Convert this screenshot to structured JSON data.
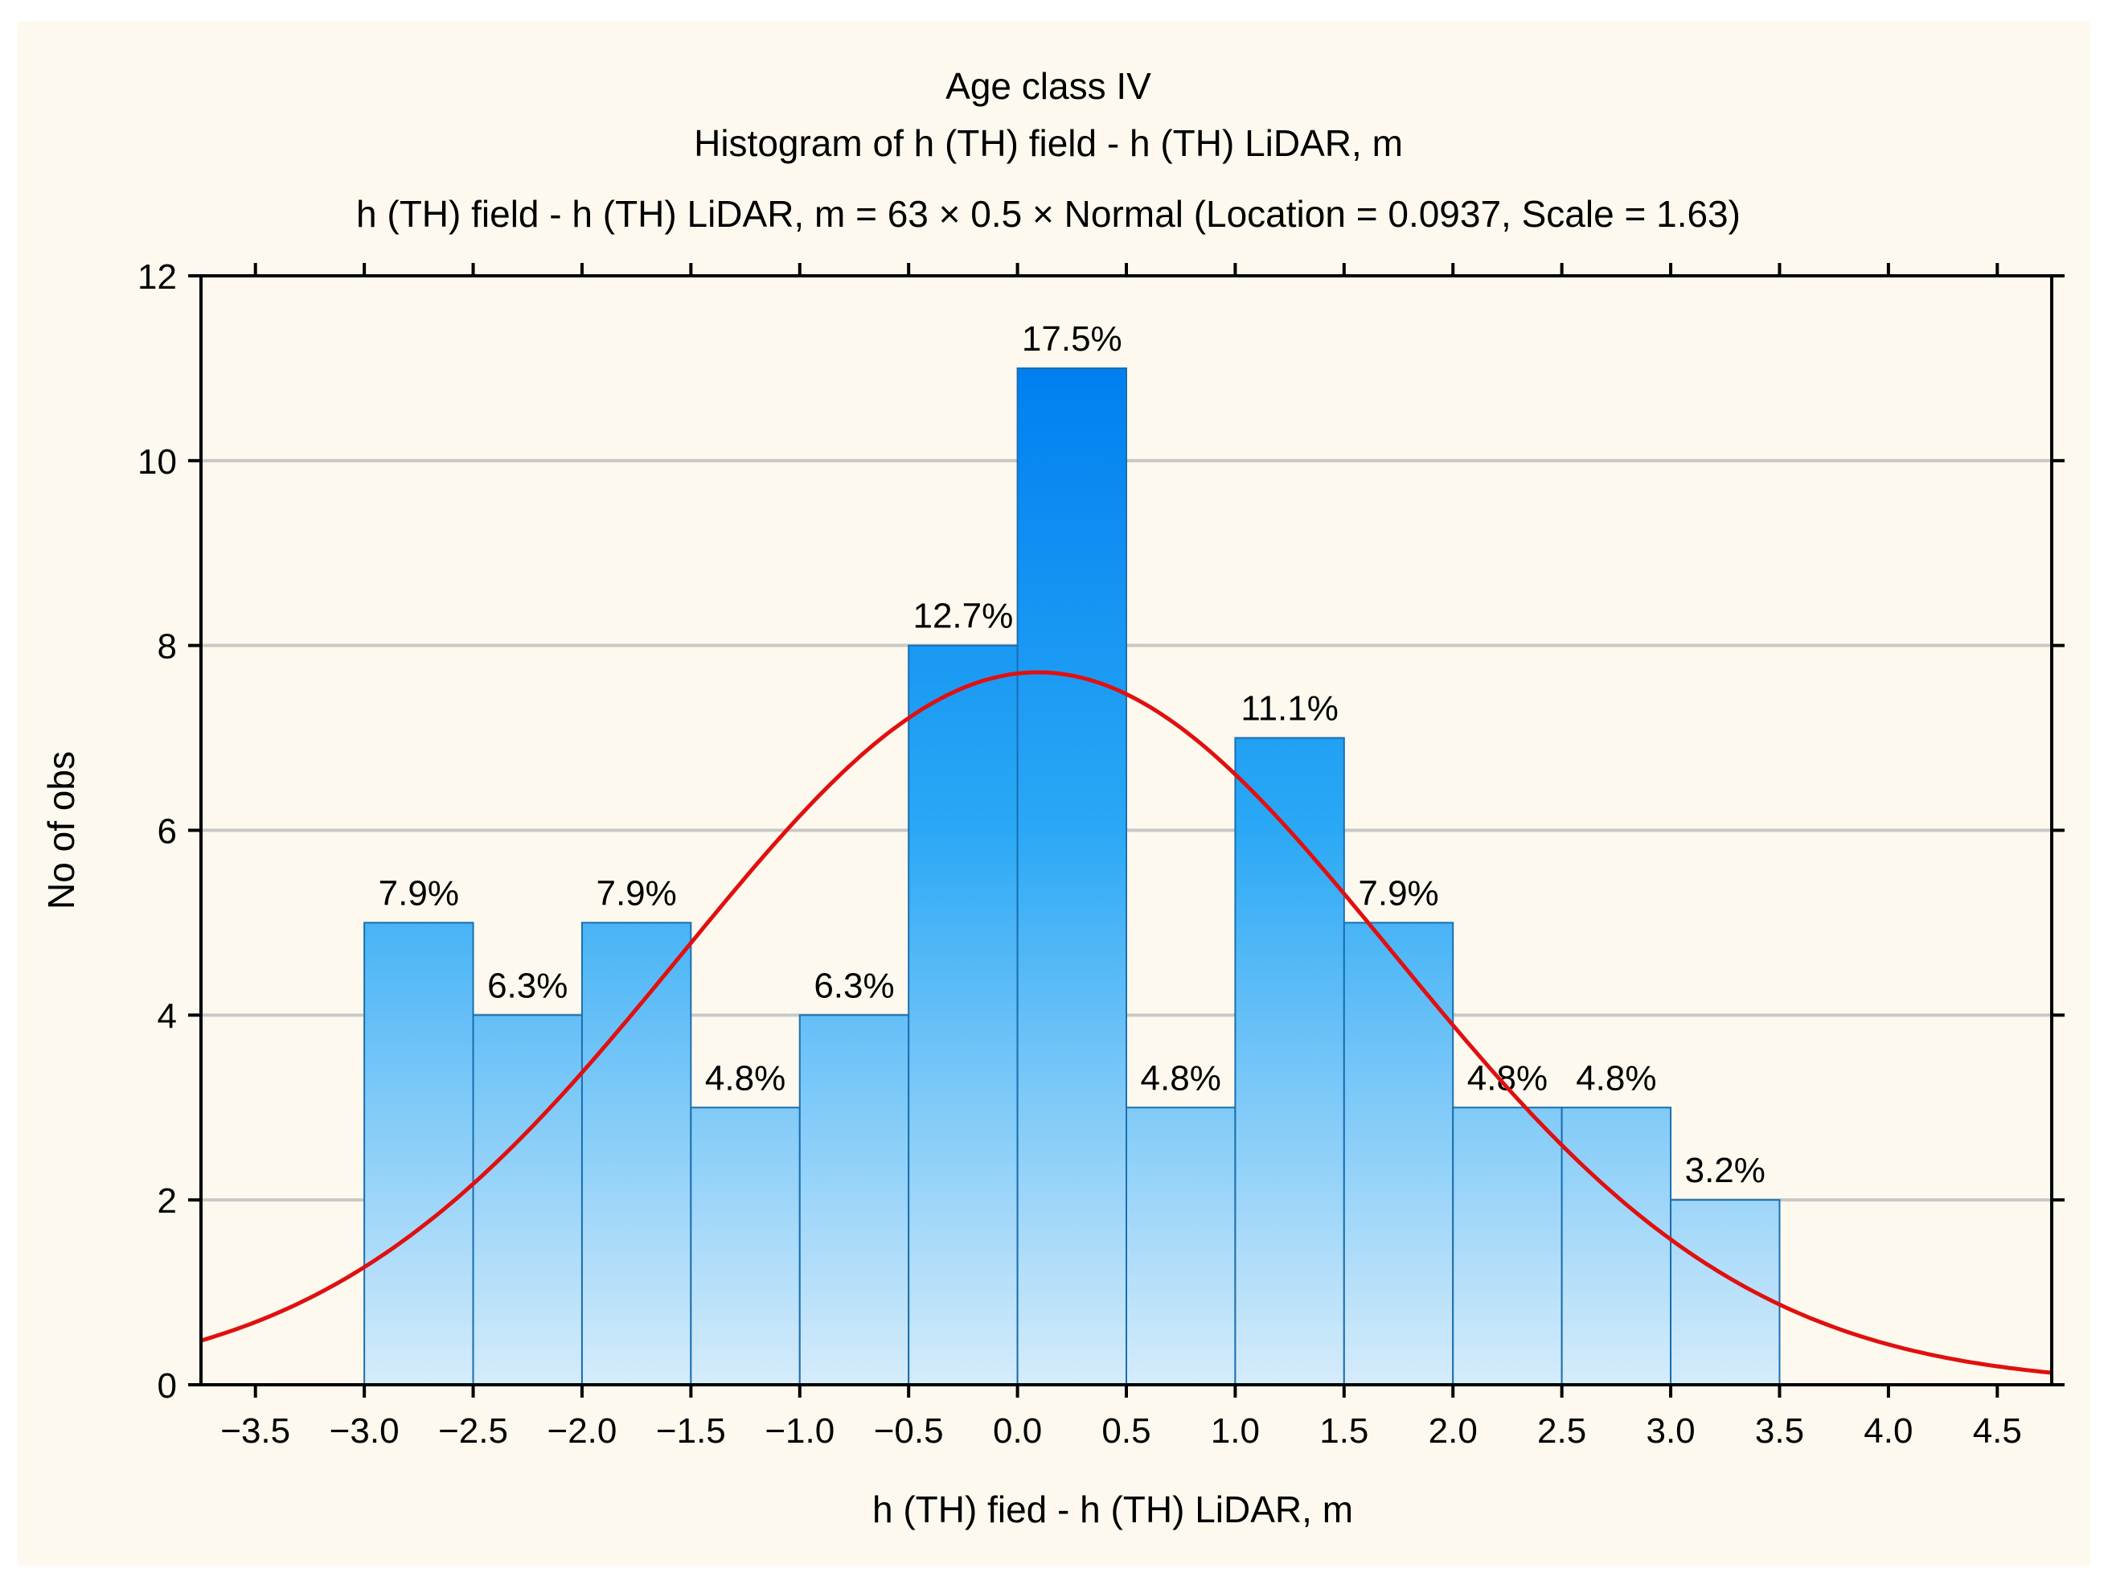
{
  "chart_data": {
    "type": "bar",
    "title": "Age class IV",
    "subtitle": "Histogram of h (TH) field - h (TH) LiDAR, m",
    "fit_label": "h (TH) field - h (TH) LiDAR, m = 63 × 0.5 × Normal (Location = 0.0937, Scale = 1.63)",
    "xlabel": "h (TH) fied - h (TH) LiDAR, m",
    "ylabel": "No of obs",
    "xlim": [
      -3.75,
      4.75
    ],
    "ylim": [
      0,
      12
    ],
    "x_ticks": [
      -3.5,
      -3.0,
      -2.5,
      -2.0,
      -1.5,
      -1.0,
      -0.5,
      0.0,
      0.5,
      1.0,
      1.5,
      2.0,
      2.5,
      3.0,
      3.5,
      4.0,
      4.5
    ],
    "x_tick_labels": [
      "−3.5",
      "−3.0",
      "−2.5",
      "−2.0",
      "−1.5",
      "−1.0",
      "−0.5",
      "0.0",
      "0.5",
      "1.0",
      "1.5",
      "2.0",
      "2.5",
      "3.0",
      "3.5",
      "4.0",
      "4.5"
    ],
    "y_ticks": [
      0,
      2,
      4,
      6,
      8,
      10,
      12
    ],
    "y_tick_labels": [
      "0",
      "2",
      "4",
      "6",
      "8",
      "10",
      "12"
    ],
    "grid": true,
    "bin_width": 0.5,
    "bins": [
      {
        "from": -3.0,
        "to": -2.5,
        "count": 5,
        "label": "7.9%"
      },
      {
        "from": -2.5,
        "to": -2.0,
        "count": 4,
        "label": "6.3%"
      },
      {
        "from": -2.0,
        "to": -1.5,
        "count": 5,
        "label": "7.9%"
      },
      {
        "from": -1.5,
        "to": -1.0,
        "count": 3,
        "label": "4.8%"
      },
      {
        "from": -1.0,
        "to": -0.5,
        "count": 4,
        "label": "6.3%"
      },
      {
        "from": -0.5,
        "to": 0.0,
        "count": 8,
        "label": "12.7%"
      },
      {
        "from": 0.0,
        "to": 0.5,
        "count": 11,
        "label": "17.5%"
      },
      {
        "from": 0.5,
        "to": 1.0,
        "count": 3,
        "label": "4.8%"
      },
      {
        "from": 1.0,
        "to": 1.5,
        "count": 7,
        "label": "11.1%"
      },
      {
        "from": 1.5,
        "to": 2.0,
        "count": 5,
        "label": "7.9%"
      },
      {
        "from": 2.0,
        "to": 2.5,
        "count": 3,
        "label": "4.8%"
      },
      {
        "from": 2.5,
        "to": 3.0,
        "count": 3,
        "label": "4.8%"
      },
      {
        "from": 3.0,
        "to": 3.5,
        "count": 2,
        "label": "3.2%"
      }
    ],
    "normal_fit": {
      "n": 63,
      "bin_width": 0.5,
      "location": 0.0937,
      "scale": 1.63
    }
  },
  "colors": {
    "background": "#fdf9ee",
    "bar_top": "#0080f0",
    "bar_mid": "#2aa8f5",
    "bar_bottom": "#d6ecfb",
    "bar_edge": "#1a6fb0",
    "fit_line": "#e01010",
    "grid": "#c8c8c8",
    "axis": "#000000"
  }
}
